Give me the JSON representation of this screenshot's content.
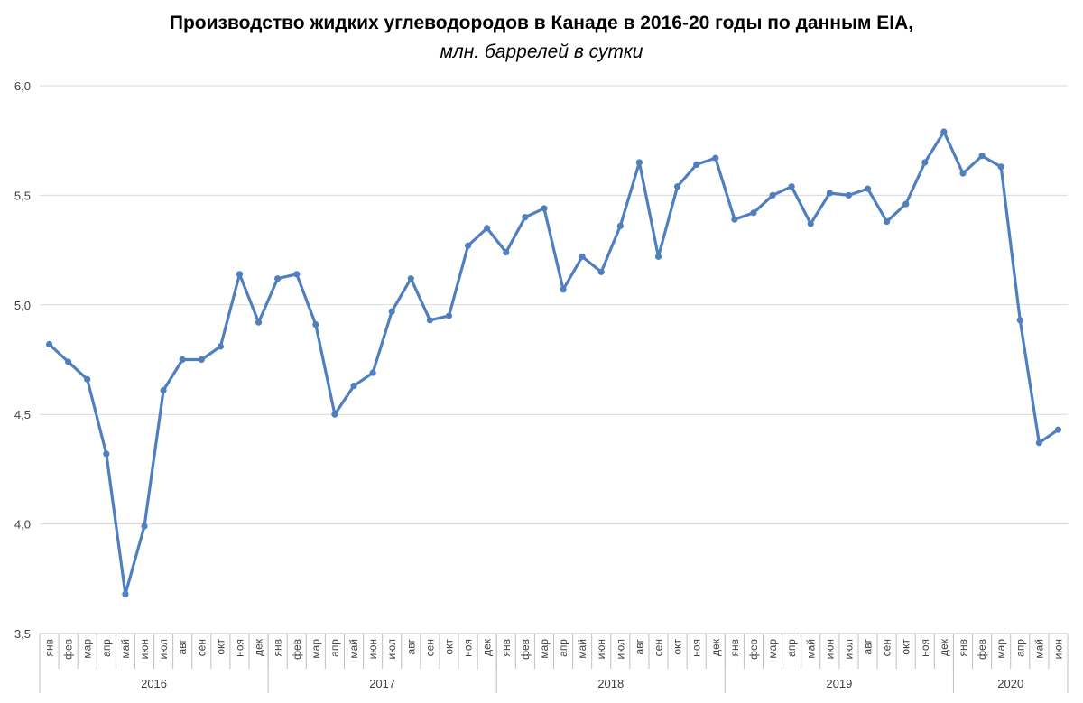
{
  "title": {
    "main": "Производство жидких углеводородов в Канаде в 2016-20 годы по данным EIA,",
    "sub": "млн. баррелей в сутки"
  },
  "colors": {
    "series": "#4f7fbf",
    "grid": "#d9d9d9",
    "axis": "#bfbfbf",
    "text": "#404040"
  },
  "chart_data": {
    "type": "line",
    "ylim": [
      3.5,
      6.0
    ],
    "yticks": [
      "3,5",
      "4,0",
      "4,5",
      "5,0",
      "5,5",
      "6,0"
    ],
    "grid": "horizontal",
    "legend": "none",
    "years": [
      {
        "label": "2016",
        "months": 12
      },
      {
        "label": "2017",
        "months": 12
      },
      {
        "label": "2018",
        "months": 12
      },
      {
        "label": "2019",
        "months": 12
      },
      {
        "label": "2020",
        "months": 6
      }
    ],
    "categories": [
      "янв",
      "фев",
      "мар",
      "апр",
      "май",
      "июн",
      "июл",
      "авг",
      "сен",
      "окт",
      "ноя",
      "дек",
      "янв",
      "фев",
      "мар",
      "апр",
      "май",
      "июн",
      "июл",
      "авг",
      "сен",
      "окт",
      "ноя",
      "дек",
      "янв",
      "фев",
      "мар",
      "апр",
      "май",
      "июн",
      "июл",
      "авг",
      "сен",
      "окт",
      "ноя",
      "дек",
      "янв",
      "фев",
      "мар",
      "апр",
      "май",
      "июн",
      "июл",
      "авг",
      "сен",
      "окт",
      "ноя",
      "дек",
      "янв",
      "фев",
      "мар",
      "апр",
      "май",
      "июн"
    ],
    "series": [
      {
        "values": [
          4.82,
          4.74,
          4.66,
          4.32,
          3.68,
          3.99,
          4.61,
          4.75,
          4.75,
          4.81,
          5.14,
          4.92,
          5.12,
          5.14,
          4.91,
          4.5,
          4.63,
          4.69,
          4.97,
          5.12,
          4.93,
          4.95,
          5.27,
          5.35,
          5.24,
          5.4,
          5.44,
          5.07,
          5.22,
          5.15,
          5.36,
          5.65,
          5.22,
          5.54,
          5.64,
          5.67,
          5.39,
          5.42,
          5.5,
          5.54,
          5.37,
          5.51,
          5.5,
          5.53,
          5.38,
          5.46,
          5.65,
          5.79,
          5.6,
          5.68,
          5.63,
          4.93,
          4.37,
          4.43
        ]
      }
    ]
  }
}
